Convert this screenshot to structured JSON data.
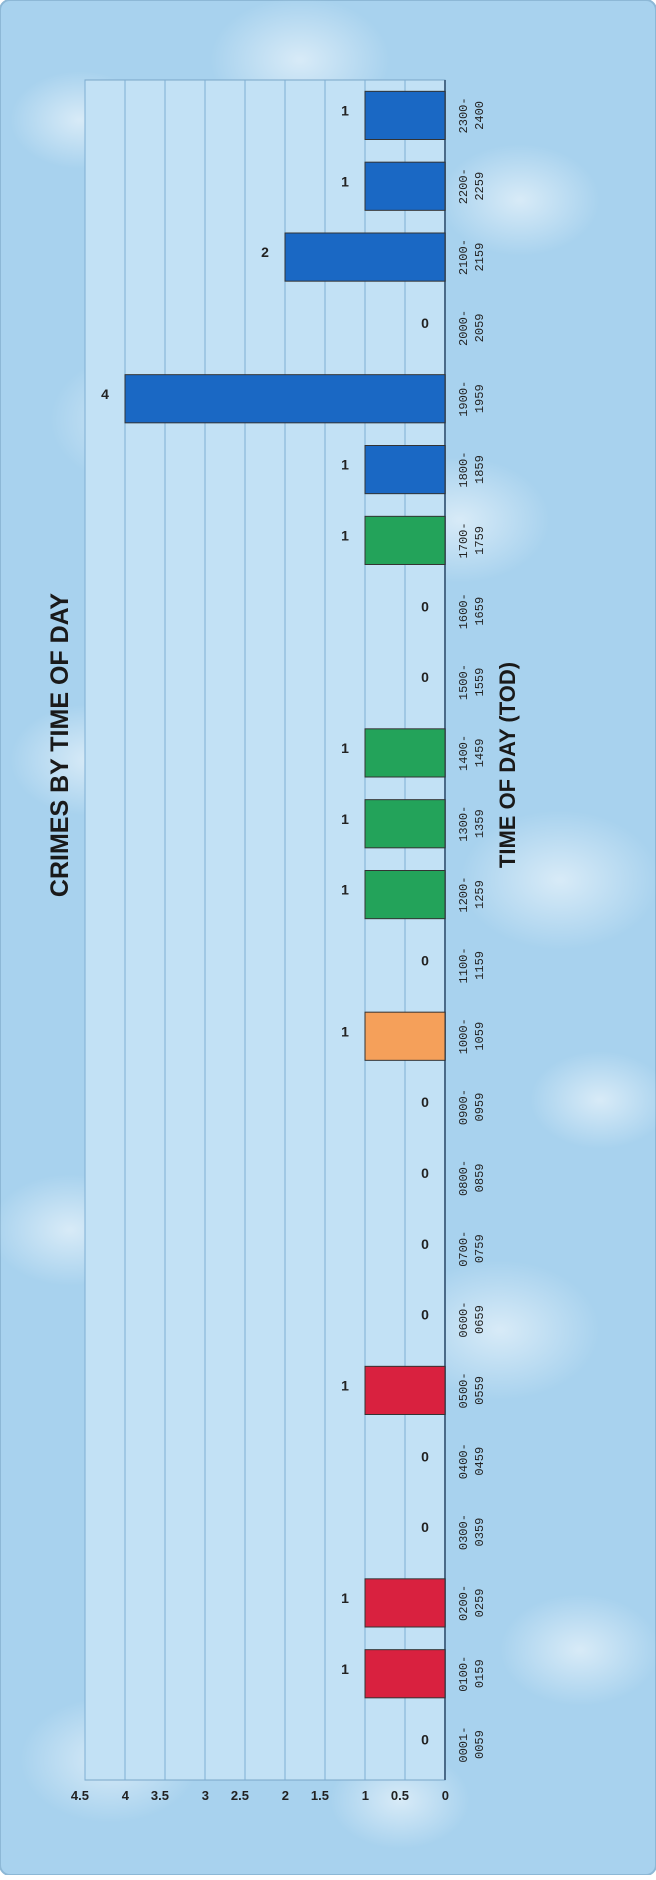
{
  "chart_data": {
    "type": "bar",
    "title": "CRIMES BY TIME OF DAY",
    "xlabel": "TIME OF DAY (TOD)",
    "ylabel": "",
    "ylim": [
      0,
      4.5
    ],
    "yticks": [
      "0",
      "0.5",
      "1",
      "1.5",
      "2",
      "2.5",
      "3",
      "3.5",
      "4",
      "4.5"
    ],
    "grid": true,
    "orientation": "rotated-90",
    "categories": [
      [
        "0001-",
        "0059"
      ],
      [
        "0100-",
        "0159"
      ],
      [
        "0200-",
        "0259"
      ],
      [
        "0300-",
        "0359"
      ],
      [
        "0400-",
        "0459"
      ],
      [
        "0500-",
        "0559"
      ],
      [
        "0600-",
        "0659"
      ],
      [
        "0700-",
        "0759"
      ],
      [
        "0800-",
        "0859"
      ],
      [
        "0900-",
        "0959"
      ],
      [
        "1000-",
        "1059"
      ],
      [
        "1100-",
        "1159"
      ],
      [
        "1200-",
        "1259"
      ],
      [
        "1300-",
        "1359"
      ],
      [
        "1400-",
        "1459"
      ],
      [
        "1500-",
        "1559"
      ],
      [
        "1600-",
        "1659"
      ],
      [
        "1700-",
        "1759"
      ],
      [
        "1800-",
        "1859"
      ],
      [
        "1900-",
        "1959"
      ],
      [
        "2000-",
        "2059"
      ],
      [
        "2100-",
        "2159"
      ],
      [
        "2200-",
        "2259"
      ],
      [
        "2300-",
        "2400"
      ]
    ],
    "values": [
      0,
      1,
      1,
      0,
      0,
      1,
      0,
      0,
      0,
      0,
      1,
      0,
      1,
      1,
      1,
      0,
      0,
      1,
      1,
      4,
      0,
      2,
      1,
      1
    ],
    "colors": [
      "#d9213f",
      "#d9213f",
      "#d9213f",
      "#d9213f",
      "#d9213f",
      "#d9213f",
      "#f5a05a",
      "#f5a05a",
      "#f5a05a",
      "#f5a05a",
      "#f5a05a",
      "#f5a05a",
      "#23a35a",
      "#23a35a",
      "#23a35a",
      "#23a35a",
      "#23a35a",
      "#23a35a",
      "#1a68c4",
      "#1a68c4",
      "#1a68c4",
      "#1a68c4",
      "#1a68c4",
      "#1a68c4"
    ],
    "colors_meaning": "bar fill colors by 6-hour period"
  }
}
